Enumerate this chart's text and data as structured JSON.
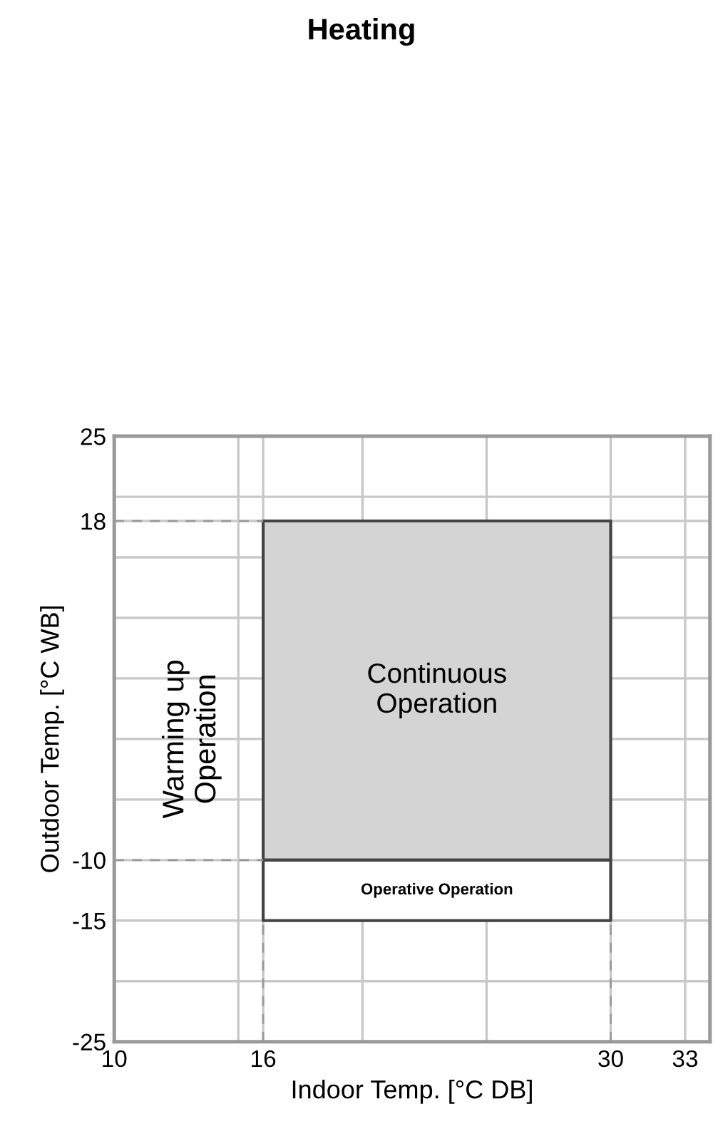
{
  "chart_data": {
    "type": "area",
    "title": "Heating",
    "xlabel": "Indoor Temp. [°C DB]",
    "ylabel": "Outdoor Temp. [°C WB]",
    "xlim": [
      10,
      34
    ],
    "ylim": [
      -25,
      25
    ],
    "xticks": [
      10,
      {
        "value": 15,
        "label": null
      },
      16,
      {
        "value": 20,
        "label": null
      },
      {
        "value": 25,
        "label": null
      },
      30,
      33
    ],
    "yticks": [
      -25,
      {
        "value": -20,
        "label": null
      },
      -15,
      -10,
      {
        "value": -5,
        "label": null
      },
      {
        "value": 0,
        "label": null
      },
      {
        "value": 5,
        "label": null
      },
      {
        "value": 10,
        "label": null
      },
      {
        "value": 15,
        "label": null
      },
      18,
      {
        "value": 20,
        "label": null
      },
      25
    ],
    "grid": true,
    "series": [
      {
        "name": "Continuous Operation",
        "color": "#d4d4d4",
        "x": [
          16,
          16,
          30,
          30
        ],
        "values": [
          -10,
          18,
          18,
          -10
        ]
      },
      {
        "name": "Operative Operation",
        "color": "#ffffff",
        "x": [
          16,
          16,
          30,
          30
        ],
        "values": [
          -15,
          -10,
          -10,
          -15
        ]
      },
      {
        "type": "line",
        "color": "#999999",
        "line_style": "dashed",
        "x": [
          10,
          16
        ],
        "values": [
          18,
          18
        ]
      },
      {
        "type": "line",
        "color": "#999999",
        "line_style": "dashed",
        "x": [
          10,
          16
        ],
        "values": [
          -10,
          -10
        ]
      },
      {
        "type": "line",
        "color": "#999999",
        "line_style": "dashed",
        "x": [
          16,
          16
        ],
        "values": [
          -25,
          -15
        ]
      },
      {
        "type": "line",
        "color": "#999999",
        "line_style": "dashed",
        "x": [
          30,
          30
        ],
        "values": [
          -25,
          -15
        ]
      }
    ],
    "annotations": [
      "Warming up\nOperation"
    ]
  }
}
